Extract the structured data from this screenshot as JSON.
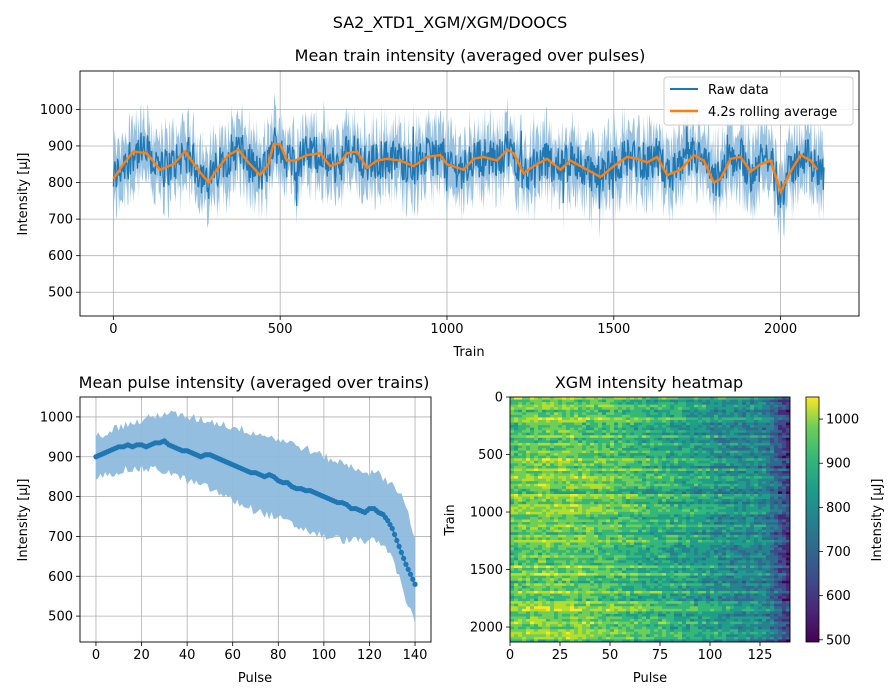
{
  "figure_title": "SA2_XTD1_XGM/XGM/DOOCS",
  "colors": {
    "raw": "#1f77b4",
    "rolling": "#ff7f0e",
    "band": "#8dbbdd",
    "grid": "#b0b0b0"
  },
  "chart_data": [
    {
      "type": "line",
      "title": "Mean train intensity (averaged over pulses)",
      "xlabel": "Train",
      "ylabel": "Intensity [μJ]",
      "xlim": [
        -100,
        2235
      ],
      "ylim": [
        435,
        1105
      ],
      "xticks": [
        0,
        500,
        1000,
        1500,
        2000
      ],
      "yticks": [
        500,
        600,
        700,
        800,
        900,
        1000
      ],
      "grid": true,
      "legend": "top-right",
      "series": [
        {
          "name": "Raw data",
          "x_range": [
            0,
            2130
          ],
          "approx_mean": 840,
          "approx_min": 580,
          "approx_max": 985
        },
        {
          "name": "4.2s rolling average",
          "x": [
            0,
            30,
            60,
            100,
            140,
            180,
            215,
            250,
            285,
            310,
            345,
            375,
            400,
            425,
            440,
            465,
            480,
            500,
            520,
            545,
            580,
            620,
            650,
            680,
            700,
            730,
            760,
            790,
            820,
            860,
            900,
            940,
            980,
            1000,
            1050,
            1080,
            1110,
            1150,
            1180,
            1200,
            1230,
            1260,
            1300,
            1340,
            1370,
            1420,
            1460,
            1500,
            1540,
            1570,
            1600,
            1630,
            1660,
            1700,
            1740,
            1770,
            1800,
            1820,
            1850,
            1880,
            1910,
            1940,
            1970,
            2000,
            2030,
            2060,
            2090,
            2110
          ],
          "y": [
            810,
            850,
            885,
            880,
            835,
            850,
            885,
            840,
            800,
            835,
            875,
            890,
            860,
            835,
            820,
            850,
            905,
            905,
            860,
            860,
            875,
            880,
            845,
            855,
            880,
            885,
            840,
            860,
            865,
            860,
            845,
            870,
            875,
            850,
            835,
            865,
            870,
            860,
            890,
            880,
            825,
            845,
            865,
            835,
            860,
            835,
            815,
            845,
            870,
            865,
            855,
            870,
            820,
            835,
            875,
            860,
            800,
            810,
            865,
            870,
            830,
            850,
            860,
            775,
            830,
            875,
            860,
            835
          ]
        }
      ]
    },
    {
      "type": "line",
      "title": "Mean pulse intensity (averaged over trains)",
      "xlabel": "Pulse",
      "ylabel": "Intensity [μJ]",
      "xlim": [
        -7,
        147
      ],
      "ylim": [
        435,
        1050
      ],
      "xticks": [
        0,
        20,
        40,
        60,
        80,
        100,
        120,
        140
      ],
      "yticks": [
        500,
        600,
        700,
        800,
        900,
        1000
      ],
      "grid": true,
      "series": [
        {
          "name": "mean",
          "x": [
            0,
            2,
            4,
            6,
            8,
            10,
            12,
            14,
            16,
            18,
            20,
            22,
            24,
            26,
            28,
            30,
            32,
            34,
            36,
            38,
            40,
            42,
            44,
            46,
            48,
            50,
            52,
            54,
            56,
            58,
            60,
            62,
            64,
            66,
            68,
            70,
            72,
            74,
            76,
            78,
            80,
            82,
            84,
            86,
            88,
            90,
            92,
            94,
            96,
            98,
            100,
            102,
            104,
            106,
            108,
            110,
            112,
            114,
            116,
            118,
            120,
            122,
            124,
            126,
            128,
            130,
            132,
            134,
            136,
            138,
            140
          ],
          "y": [
            900,
            905,
            910,
            915,
            920,
            925,
            925,
            930,
            925,
            930,
            930,
            925,
            930,
            935,
            935,
            940,
            930,
            925,
            920,
            915,
            915,
            910,
            905,
            900,
            905,
            905,
            900,
            895,
            890,
            885,
            880,
            875,
            870,
            865,
            860,
            860,
            855,
            850,
            855,
            850,
            840,
            835,
            835,
            825,
            820,
            820,
            815,
            815,
            810,
            805,
            800,
            795,
            790,
            785,
            785,
            780,
            770,
            770,
            765,
            760,
            770,
            770,
            760,
            755,
            740,
            720,
            690,
            660,
            630,
            605,
            580
          ]
        },
        {
          "name": "band",
          "x": [
            0,
            10,
            20,
            30,
            40,
            50,
            60,
            70,
            80,
            90,
            100,
            110,
            120,
            125,
            130,
            135,
            140
          ],
          "upper": [
            950,
            975,
            990,
            1010,
            1000,
            990,
            975,
            960,
            945,
            925,
            900,
            880,
            860,
            855,
            830,
            800,
            690
          ],
          "lower": [
            845,
            865,
            870,
            865,
            840,
            820,
            790,
            765,
            745,
            720,
            700,
            690,
            690,
            680,
            650,
            560,
            480
          ]
        }
      ]
    },
    {
      "type": "heatmap",
      "title": "XGM intensity heatmap",
      "xlabel": "Pulse",
      "ylabel": "Train",
      "xlim": [
        0,
        140
      ],
      "ylim": [
        2130,
        0
      ],
      "xticks": [
        0,
        25,
        50,
        75,
        100,
        125
      ],
      "yticks": [
        0,
        500,
        1000,
        1500,
        2000
      ],
      "colormap": "viridis",
      "colorbar": {
        "label": "Intensity [μJ]",
        "range": [
          495,
          1050
        ],
        "ticks": [
          500,
          600,
          700,
          800,
          900,
          1000
        ]
      }
    }
  ]
}
